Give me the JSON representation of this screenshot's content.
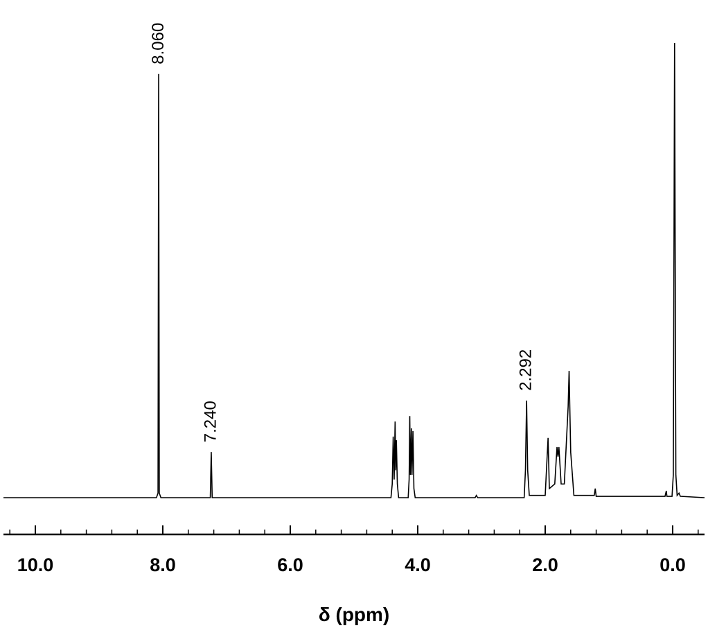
{
  "chart_data": {
    "type": "spectrum",
    "x_label": "δ (ppm)",
    "xlim": [
      10.5,
      -0.5
    ],
    "ylim": [
      0,
      100
    ],
    "xticks": [
      {
        "value": 10,
        "label": "10.0"
      },
      {
        "value": 8,
        "label": "8.0"
      },
      {
        "value": 6,
        "label": "6.0"
      },
      {
        "value": 4,
        "label": "4.0"
      },
      {
        "value": 2,
        "label": "2.0"
      },
      {
        "value": 0,
        "label": "0.0"
      }
    ],
    "xminor_ticks": [
      10.4,
      9.6,
      9.2,
      8.8,
      8.4,
      7.6,
      7.2,
      6.8,
      6.4,
      5.6,
      5.2,
      4.8,
      4.4,
      3.6,
      3.2,
      2.8,
      2.4,
      1.6,
      1.2,
      0.8,
      0.4,
      -0.4
    ],
    "color": "#000000",
    "x": [
      10.5,
      8.1,
      8.075,
      8.065,
      8.055,
      8.03,
      7.255,
      7.24,
      7.225,
      4.42,
      4.4,
      4.385,
      4.37,
      4.355,
      4.345,
      4.335,
      4.32,
      4.3,
      4.15,
      4.135,
      4.125,
      4.115,
      4.1,
      4.09,
      4.075,
      4.06,
      4.04,
      3.1,
      3.08,
      3.06,
      2.33,
      2.31,
      2.292,
      2.275,
      2.25,
      2.0,
      1.955,
      1.935,
      1.85,
      1.815,
      1.8,
      1.785,
      1.75,
      1.7,
      1.64,
      1.625,
      1.6,
      1.55,
      1.23,
      1.215,
      1.2,
      0.12,
      0.1,
      0.09,
      0.01,
      -0.01,
      -0.03,
      -0.05,
      -0.07,
      -0.1,
      -0.12,
      -0.5
    ],
    "y": [
      0,
      0,
      1,
      92.9,
      1,
      0,
      0,
      10.0,
      0,
      0,
      3,
      13.4,
      4,
      16.7,
      6,
      12.6,
      3,
      0,
      0,
      4,
      17.9,
      5,
      15.2,
      5,
      14.6,
      2,
      0,
      0,
      0.5,
      0,
      0,
      6,
      21.3,
      6,
      0.5,
      0.5,
      13.1,
      2,
      3,
      11.1,
      9,
      11.1,
      3,
      3,
      20,
      27.8,
      10,
      0.5,
      0.5,
      2.0,
      0.3,
      0.3,
      1.5,
      0.3,
      0.3,
      5,
      99.7,
      5,
      0.5,
      1,
      0.3,
      0
    ],
    "peak_labels": [
      {
        "value": 8.06,
        "label": "8.060"
      },
      {
        "value": 7.24,
        "label": "7.240"
      },
      {
        "value": 2.292,
        "label": "2.292"
      }
    ]
  }
}
